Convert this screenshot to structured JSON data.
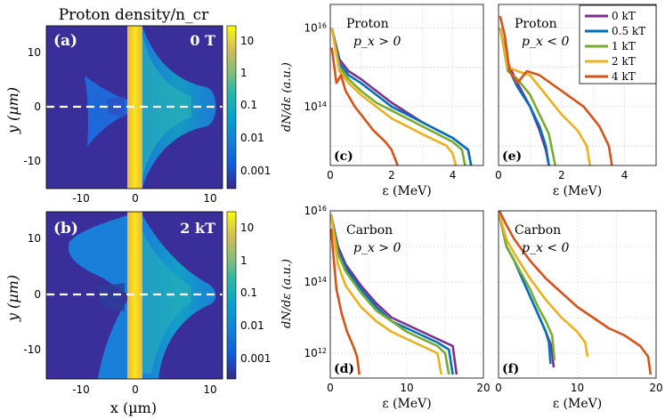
{
  "figure_title": "Proton density/n_cr",
  "colorbar": {
    "ticks": [
      "10",
      "1",
      "0.1",
      "0.01",
      "0.001"
    ]
  },
  "density_panels": [
    {
      "label": "(a)",
      "field": "0 T"
    },
    {
      "label": "(b)",
      "field": "2 kT"
    }
  ],
  "density_axes": {
    "xlabel": "x (µm)",
    "ylabel": "y (µm)",
    "xticks": [
      "-10",
      "0",
      "10"
    ],
    "yticks": [
      "10",
      "0",
      "-10"
    ]
  },
  "spectra_axes": {
    "ylabel": "dN/dε (a.u.)",
    "xlabel": "ε (MeV)"
  },
  "legend": {
    "entries": [
      "0 kT",
      "0.5 kT",
      "1 kT",
      "2 kT",
      "4 kT"
    ],
    "colors": [
      "#7e2f8e",
      "#0072bd",
      "#77ac30",
      "#edb120",
      "#d95319"
    ]
  },
  "chart_data": [
    {
      "type": "line",
      "panel": "(c)",
      "species": "Proton",
      "condition": "p_x > 0",
      "xlabel": "ε (MeV)",
      "xlim": [
        0,
        5
      ],
      "ylog": true,
      "ylim_exp": [
        12.5,
        16.6
      ],
      "xticks": [
        "0",
        "2",
        "4"
      ],
      "yticks": [
        "10^16",
        "10^14"
      ],
      "series": [
        {
          "name": "0 kT",
          "x": [
            0.05,
            0.3,
            0.6,
            1.0,
            1.5,
            2.0,
            3.0,
            4.0,
            4.5,
            4.6
          ],
          "y": [
            16.0,
            15.2,
            14.9,
            14.7,
            14.4,
            14.1,
            13.6,
            13.2,
            12.9,
            12.5
          ]
        },
        {
          "name": "0.5 kT",
          "x": [
            0.05,
            0.3,
            0.6,
            1.0,
            1.5,
            2.0,
            3.0,
            4.0,
            4.5,
            4.6
          ],
          "y": [
            16.0,
            15.1,
            14.8,
            14.6,
            14.3,
            14.0,
            13.6,
            13.2,
            12.9,
            12.5
          ]
        },
        {
          "name": "1 kT",
          "x": [
            0.05,
            0.3,
            0.6,
            1.0,
            1.5,
            2.0,
            3.0,
            4.0,
            4.3,
            4.4
          ],
          "y": [
            16.0,
            15.0,
            14.7,
            14.4,
            14.1,
            13.9,
            13.5,
            13.1,
            12.9,
            12.5
          ]
        },
        {
          "name": "2 kT",
          "x": [
            0.05,
            0.3,
            0.6,
            1.0,
            1.5,
            2.0,
            3.0,
            3.8,
            4.0,
            4.1
          ],
          "y": [
            16.0,
            14.9,
            14.6,
            14.3,
            14.0,
            13.7,
            13.3,
            13.0,
            12.8,
            12.5
          ]
        },
        {
          "name": "4 kT",
          "x": [
            0.05,
            0.2,
            0.35,
            0.5,
            0.8,
            1.0,
            1.4,
            1.8,
            2.0,
            2.2
          ],
          "y": [
            15.5,
            14.6,
            14.8,
            14.4,
            14.0,
            13.8,
            13.4,
            13.1,
            12.9,
            12.5
          ]
        }
      ]
    },
    {
      "type": "line",
      "panel": "(e)",
      "species": "Proton",
      "condition": "p_x < 0",
      "xlabel": "ε (MeV)",
      "xlim": [
        0,
        5
      ],
      "ylog": true,
      "ylim_exp": [
        12.5,
        16.6
      ],
      "xticks": [
        "0",
        "2",
        "4"
      ],
      "yticks": [],
      "series": [
        {
          "name": "0 kT",
          "x": [
            0.05,
            0.3,
            0.6,
            1.0,
            1.3,
            1.5,
            1.6
          ],
          "y": [
            16.0,
            15.1,
            14.6,
            14.0,
            13.4,
            12.9,
            12.5
          ]
        },
        {
          "name": "0.5 kT",
          "x": [
            0.05,
            0.3,
            0.6,
            1.0,
            1.3,
            1.5,
            1.6
          ],
          "y": [
            16.0,
            15.0,
            14.5,
            14.0,
            13.5,
            13.0,
            12.5
          ]
        },
        {
          "name": "1 kT",
          "x": [
            0.05,
            0.3,
            0.6,
            1.0,
            1.3,
            1.6,
            1.8
          ],
          "y": [
            16.0,
            14.9,
            14.7,
            14.3,
            13.8,
            13.3,
            12.5
          ]
        },
        {
          "name": "2 kT",
          "x": [
            0.05,
            0.3,
            0.6,
            1.0,
            1.5,
            2.0,
            2.5,
            2.8,
            2.9
          ],
          "y": [
            16.0,
            15.0,
            14.9,
            14.8,
            14.3,
            13.8,
            13.4,
            13.0,
            12.5
          ]
        },
        {
          "name": "4 kT",
          "x": [
            0.05,
            0.2,
            0.35,
            0.6,
            0.9,
            1.3,
            2.0,
            2.7,
            3.2,
            3.5,
            3.6
          ],
          "y": [
            16.3,
            15.8,
            14.9,
            14.6,
            14.9,
            14.8,
            14.4,
            14.0,
            13.5,
            13.0,
            12.5
          ]
        }
      ]
    },
    {
      "type": "line",
      "panel": "(d)",
      "species": "Carbon",
      "condition": "p_x > 0",
      "xlabel": "ε (MeV)",
      "xlim": [
        0,
        20
      ],
      "ylog": true,
      "ylim_exp": [
        11.3,
        16.0
      ],
      "xticks": [
        "0",
        "10",
        "20"
      ],
      "yticks": [
        "10^16",
        "10^14",
        "10^12"
      ],
      "series": [
        {
          "name": "0 kT",
          "x": [
            0.1,
            1,
            2,
            4,
            6,
            8,
            10,
            12,
            14,
            16,
            16.5
          ],
          "y": [
            15.9,
            15.0,
            14.5,
            13.9,
            13.4,
            13.0,
            12.8,
            12.6,
            12.4,
            12.2,
            11.4
          ]
        },
        {
          "name": "0.5 kT",
          "x": [
            0.1,
            1,
            2,
            4,
            6,
            8,
            10,
            12,
            14,
            15.5,
            16.0
          ],
          "y": [
            15.9,
            14.9,
            14.4,
            13.8,
            13.3,
            12.9,
            12.7,
            12.5,
            12.3,
            12.1,
            11.4
          ]
        },
        {
          "name": "1 kT",
          "x": [
            0.1,
            1,
            2,
            4,
            6,
            8,
            10,
            12,
            14,
            15.0,
            15.5
          ],
          "y": [
            15.9,
            14.8,
            14.3,
            13.7,
            13.2,
            12.9,
            12.6,
            12.4,
            12.2,
            12.0,
            11.4
          ]
        },
        {
          "name": "2 kT",
          "x": [
            0.1,
            1,
            2,
            4,
            6,
            8,
            10,
            12,
            14,
            14.5
          ],
          "y": [
            15.9,
            14.5,
            13.9,
            13.3,
            12.9,
            12.6,
            12.4,
            12.2,
            12.0,
            11.4
          ]
        },
        {
          "name": "4 kT",
          "x": [
            0.1,
            0.8,
            1.5,
            2.2,
            3.0,
            3.5,
            3.8
          ],
          "y": [
            15.5,
            13.8,
            13.1,
            12.6,
            12.2,
            11.9,
            11.4
          ]
        }
      ]
    },
    {
      "type": "line",
      "panel": "(f)",
      "species": "Carbon",
      "condition": "p_x < 0",
      "xlabel": "ε (MeV)",
      "xlim": [
        0,
        20
      ],
      "ylog": true,
      "ylim_exp": [
        11.3,
        16.0
      ],
      "xticks": [
        "0",
        "10",
        "20"
      ],
      "yticks": [],
      "series": [
        {
          "name": "0 kT",
          "x": [
            0.1,
            1,
            2,
            3,
            4,
            5,
            6,
            6.7,
            7.0
          ],
          "y": [
            15.9,
            15.0,
            14.6,
            14.1,
            13.6,
            13.1,
            12.6,
            12.2,
            11.6
          ]
        },
        {
          "name": "0.5 kT",
          "x": [
            0.1,
            1,
            2,
            3,
            4,
            5,
            6,
            6.4,
            6.6
          ],
          "y": [
            15.9,
            15.0,
            14.6,
            14.1,
            13.6,
            13.1,
            12.6,
            12.3,
            11.7
          ]
        },
        {
          "name": "1 kT",
          "x": [
            0.1,
            1,
            2,
            3,
            4,
            5,
            6,
            6.8,
            7.1
          ],
          "y": [
            15.9,
            15.0,
            14.6,
            14.2,
            13.8,
            13.3,
            12.9,
            12.5,
            11.8
          ]
        },
        {
          "name": "2 kT",
          "x": [
            0.1,
            1,
            2,
            4,
            6,
            8,
            10,
            11.0,
            11.3
          ],
          "y": [
            15.9,
            15.2,
            14.8,
            14.1,
            13.5,
            13.0,
            12.6,
            12.3,
            11.9
          ]
        },
        {
          "name": "4 kT",
          "x": [
            0.1,
            1,
            2,
            4,
            6,
            8,
            10,
            12,
            14,
            16,
            18,
            19.0,
            19.3
          ],
          "y": [
            16.0,
            15.6,
            15.2,
            14.6,
            14.1,
            13.7,
            13.3,
            13.0,
            12.7,
            12.5,
            12.2,
            11.9,
            11.4
          ]
        }
      ]
    }
  ]
}
